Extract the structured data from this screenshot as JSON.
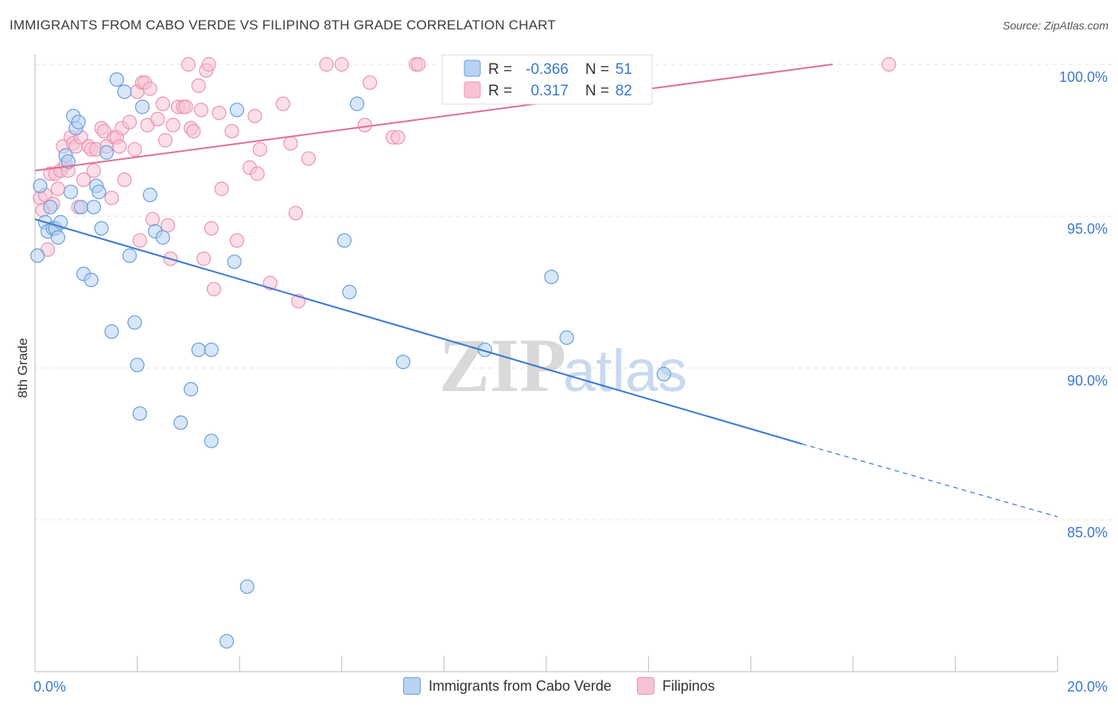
{
  "header": {
    "title": "IMMIGRANTS FROM CABO VERDE VS FILIPINO 8TH GRADE CORRELATION CHART",
    "source": "Source: ZipAtlas.com"
  },
  "watermark": {
    "zip": "ZIP",
    "atlas": "atlas"
  },
  "stats_legend": [
    {
      "r_label": "R = ",
      "r_value": "-0.366",
      "n_label": "N = ",
      "n_value": "51"
    },
    {
      "r_label": "R = ",
      "r_value": "0.317",
      "n_label": "N = ",
      "n_value": "82"
    }
  ],
  "colors": {
    "blue_fill": "#b7d2f3",
    "blue_stroke": "#6a9fd8",
    "blue_line": "#3a78d2",
    "pink_fill": "#f7c3d3",
    "pink_stroke": "#eb94b2",
    "pink_line": "#e06f95",
    "value_text": "#3a78d2",
    "axis_text": "#3a78d2"
  },
  "chart_data": {
    "type": "scatter",
    "title": "IMMIGRANTS FROM CABO VERDE VS FILIPINO 8TH GRADE CORRELATION CHART",
    "xlabel": "",
    "ylabel": "8th Grade",
    "xlim": [
      0,
      20
    ],
    "ylim": [
      80.5,
      100.7
    ],
    "x_tick_labels": [
      {
        "value": 0,
        "label": "0.0%"
      },
      {
        "value": 20,
        "label": "20.0%"
      }
    ],
    "y_tick_labels": [
      {
        "value": 100,
        "label": "100.0%"
      },
      {
        "value": 95,
        "label": "95.0%"
      },
      {
        "value": 90,
        "label": "90.0%"
      },
      {
        "value": 85,
        "label": "85.0%"
      }
    ],
    "series": [
      {
        "name": "Immigrants from Cabo Verde",
        "color": "blue",
        "r": -0.366,
        "n": 51,
        "trend": {
          "x0": 0,
          "y0": 94.9,
          "x1": 15.0,
          "y1": 87.5,
          "dash_to_x": 20,
          "dash_to_y": 85.1
        },
        "points": [
          [
            0.05,
            93.7
          ],
          [
            0.1,
            96.0
          ],
          [
            0.2,
            94.8
          ],
          [
            0.25,
            94.5
          ],
          [
            0.3,
            95.3
          ],
          [
            0.35,
            94.6
          ],
          [
            0.4,
            94.6
          ],
          [
            0.5,
            94.8
          ],
          [
            0.45,
            94.3
          ],
          [
            0.6,
            97.0
          ],
          [
            0.65,
            96.8
          ],
          [
            0.7,
            95.8
          ],
          [
            0.75,
            98.3
          ],
          [
            0.8,
            97.9
          ],
          [
            0.85,
            98.1
          ],
          [
            0.9,
            95.3
          ],
          [
            0.95,
            93.1
          ],
          [
            1.1,
            92.9
          ],
          [
            1.15,
            95.3
          ],
          [
            1.2,
            96.0
          ],
          [
            1.25,
            95.8
          ],
          [
            1.3,
            94.6
          ],
          [
            1.4,
            97.1
          ],
          [
            1.5,
            91.2
          ],
          [
            1.6,
            99.5
          ],
          [
            1.75,
            99.1
          ],
          [
            1.85,
            93.7
          ],
          [
            1.95,
            91.5
          ],
          [
            2.0,
            90.1
          ],
          [
            2.05,
            88.5
          ],
          [
            2.1,
            98.6
          ],
          [
            2.25,
            95.7
          ],
          [
            2.35,
            94.5
          ],
          [
            2.5,
            94.3
          ],
          [
            2.85,
            88.2
          ],
          [
            3.05,
            89.3
          ],
          [
            3.2,
            90.6
          ],
          [
            3.45,
            90.6
          ],
          [
            3.45,
            87.6
          ],
          [
            3.75,
            81.0
          ],
          [
            3.9,
            93.5
          ],
          [
            3.95,
            98.5
          ],
          [
            4.15,
            82.8
          ],
          [
            6.05,
            94.2
          ],
          [
            6.15,
            92.5
          ],
          [
            6.3,
            98.7
          ],
          [
            7.2,
            90.2
          ],
          [
            8.8,
            90.6
          ],
          [
            10.1,
            93.0
          ],
          [
            10.4,
            91.0
          ],
          [
            12.3,
            89.8
          ]
        ]
      },
      {
        "name": "Filipinos",
        "color": "pink",
        "r": 0.317,
        "n": 82,
        "trend": {
          "x0": 0,
          "y0": 96.5,
          "x1": 15.6,
          "y1": 100.0
        },
        "points": [
          [
            0.1,
            95.6
          ],
          [
            0.15,
            95.2
          ],
          [
            0.2,
            95.7
          ],
          [
            0.25,
            93.9
          ],
          [
            0.3,
            96.4
          ],
          [
            0.35,
            95.4
          ],
          [
            0.4,
            96.4
          ],
          [
            0.45,
            95.9
          ],
          [
            0.5,
            96.5
          ],
          [
            0.55,
            97.3
          ],
          [
            0.6,
            96.7
          ],
          [
            0.65,
            96.5
          ],
          [
            0.7,
            97.6
          ],
          [
            0.75,
            97.4
          ],
          [
            0.8,
            97.3
          ],
          [
            0.85,
            95.3
          ],
          [
            0.9,
            97.6
          ],
          [
            0.95,
            96.2
          ],
          [
            1.05,
            97.3
          ],
          [
            1.1,
            97.2
          ],
          [
            1.15,
            96.5
          ],
          [
            1.2,
            97.2
          ],
          [
            1.3,
            97.9
          ],
          [
            1.35,
            97.8
          ],
          [
            1.4,
            97.3
          ],
          [
            1.5,
            95.6
          ],
          [
            1.55,
            97.6
          ],
          [
            1.6,
            97.6
          ],
          [
            1.65,
            97.3
          ],
          [
            1.7,
            97.9
          ],
          [
            1.75,
            96.2
          ],
          [
            1.85,
            98.1
          ],
          [
            1.95,
            97.2
          ],
          [
            2.0,
            99.1
          ],
          [
            2.05,
            94.2
          ],
          [
            2.1,
            99.4
          ],
          [
            2.15,
            99.4
          ],
          [
            2.2,
            98.0
          ],
          [
            2.25,
            99.2
          ],
          [
            2.3,
            94.9
          ],
          [
            2.4,
            98.2
          ],
          [
            2.5,
            98.7
          ],
          [
            2.55,
            97.5
          ],
          [
            2.6,
            94.7
          ],
          [
            2.65,
            93.6
          ],
          [
            2.7,
            98.0
          ],
          [
            2.8,
            98.6
          ],
          [
            2.9,
            98.6
          ],
          [
            2.95,
            98.6
          ],
          [
            3.0,
            100.0
          ],
          [
            3.05,
            97.9
          ],
          [
            3.1,
            97.8
          ],
          [
            3.2,
            99.3
          ],
          [
            3.25,
            98.5
          ],
          [
            3.3,
            93.6
          ],
          [
            3.35,
            99.8
          ],
          [
            3.4,
            100.0
          ],
          [
            3.45,
            94.6
          ],
          [
            3.5,
            92.6
          ],
          [
            3.6,
            98.4
          ],
          [
            3.65,
            95.9
          ],
          [
            3.85,
            97.8
          ],
          [
            3.95,
            94.2
          ],
          [
            4.2,
            96.6
          ],
          [
            4.3,
            98.3
          ],
          [
            4.35,
            96.4
          ],
          [
            4.4,
            97.2
          ],
          [
            4.6,
            92.8
          ],
          [
            4.85,
            98.7
          ],
          [
            5.0,
            97.4
          ],
          [
            5.1,
            95.1
          ],
          [
            5.15,
            92.2
          ],
          [
            5.35,
            96.9
          ],
          [
            5.7,
            100.0
          ],
          [
            6.0,
            100.0
          ],
          [
            6.45,
            98.0
          ],
          [
            6.55,
            99.4
          ],
          [
            7.0,
            97.6
          ],
          [
            7.1,
            97.6
          ],
          [
            7.45,
            100.0
          ],
          [
            7.5,
            100.0
          ],
          [
            16.7,
            100.0
          ]
        ]
      }
    ]
  },
  "bottom_legend": [
    {
      "label": "Immigrants from Cabo Verde",
      "color": "blue"
    },
    {
      "label": "Filipinos",
      "color": "pink"
    }
  ]
}
